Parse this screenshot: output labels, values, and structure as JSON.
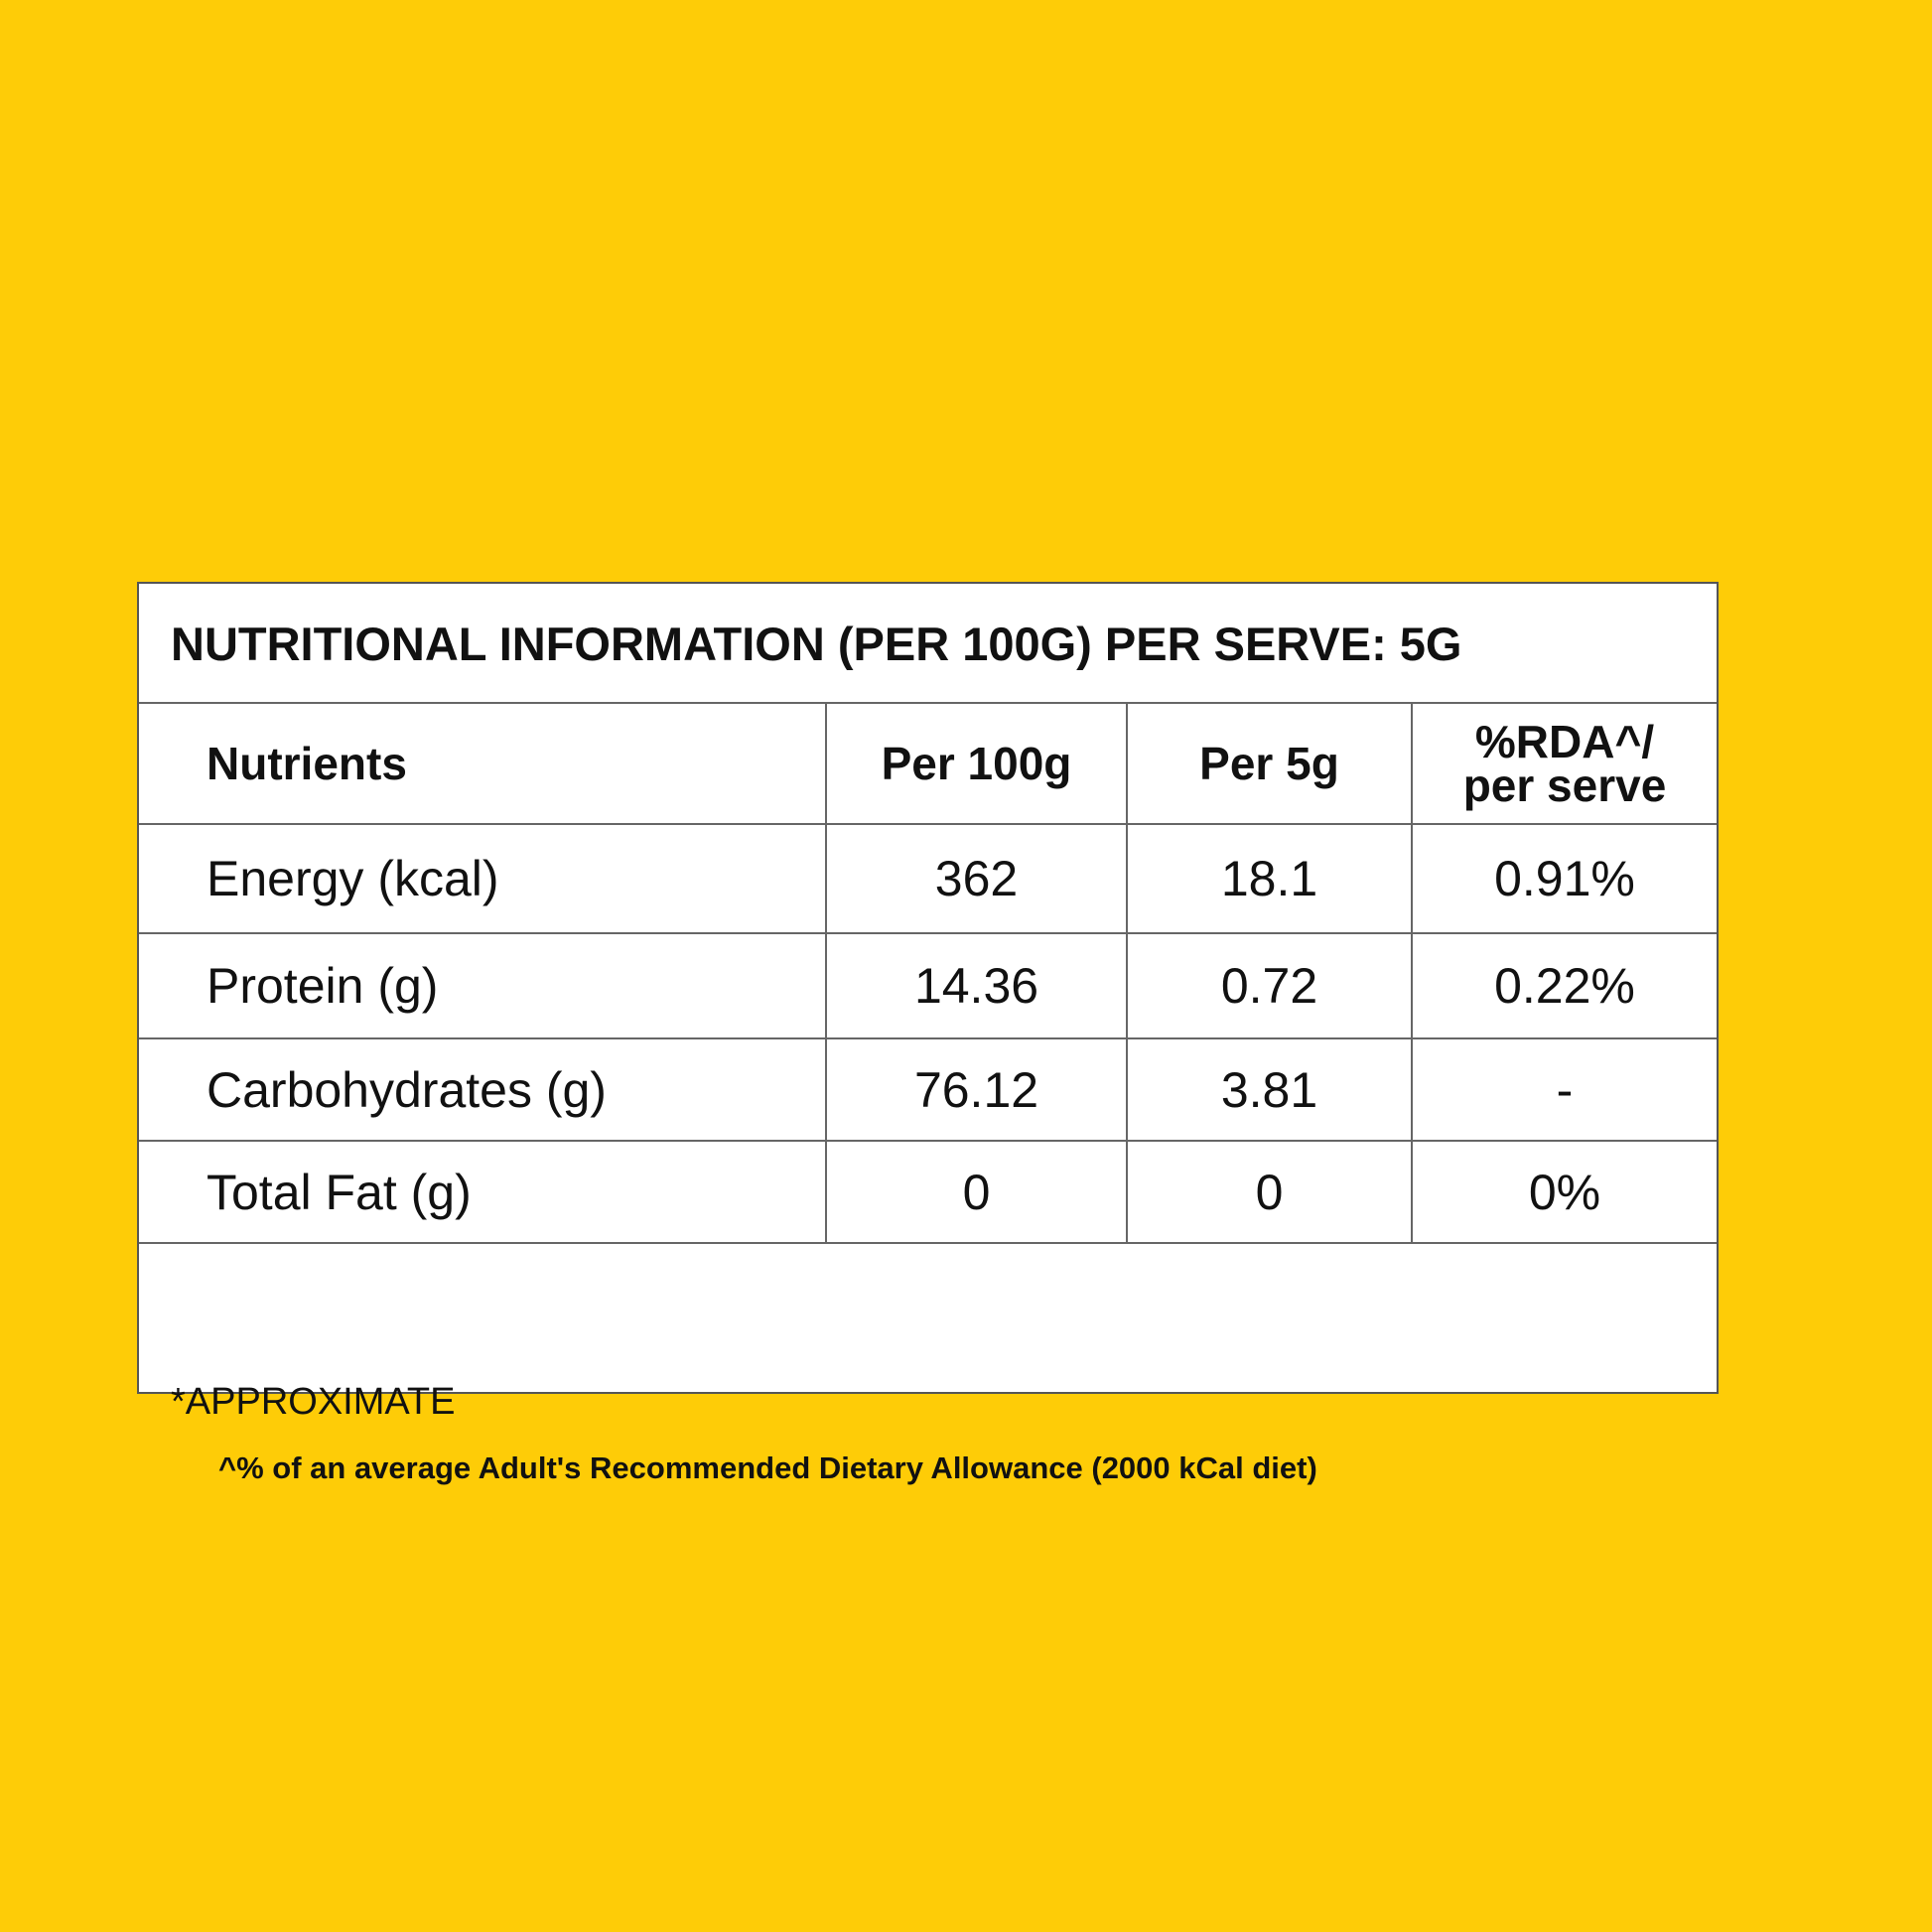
{
  "table": {
    "title": "NUTRITIONAL INFORMATION (PER 100G) PER SERVE: 5G",
    "headers": [
      "Nutrients",
      "Per 100g",
      "Per 5g",
      "%RDA^/ per serve"
    ],
    "rows": [
      [
        "Energy (kcal)",
        "362",
        "18.1",
        "0.91%"
      ],
      [
        "Protein (g)",
        "14.36",
        "0.72",
        "0.22%"
      ],
      [
        "Carbohydrates (g)",
        "76.12",
        "3.81",
        "-"
      ],
      [
        "Total Fat (g)",
        "0",
        "0",
        "0%"
      ]
    ],
    "footnotes": [
      "*APPROXIMATE",
      "^% of an average Adult's Recommended Dietary Allowance (2000 kCal diet)"
    ]
  }
}
